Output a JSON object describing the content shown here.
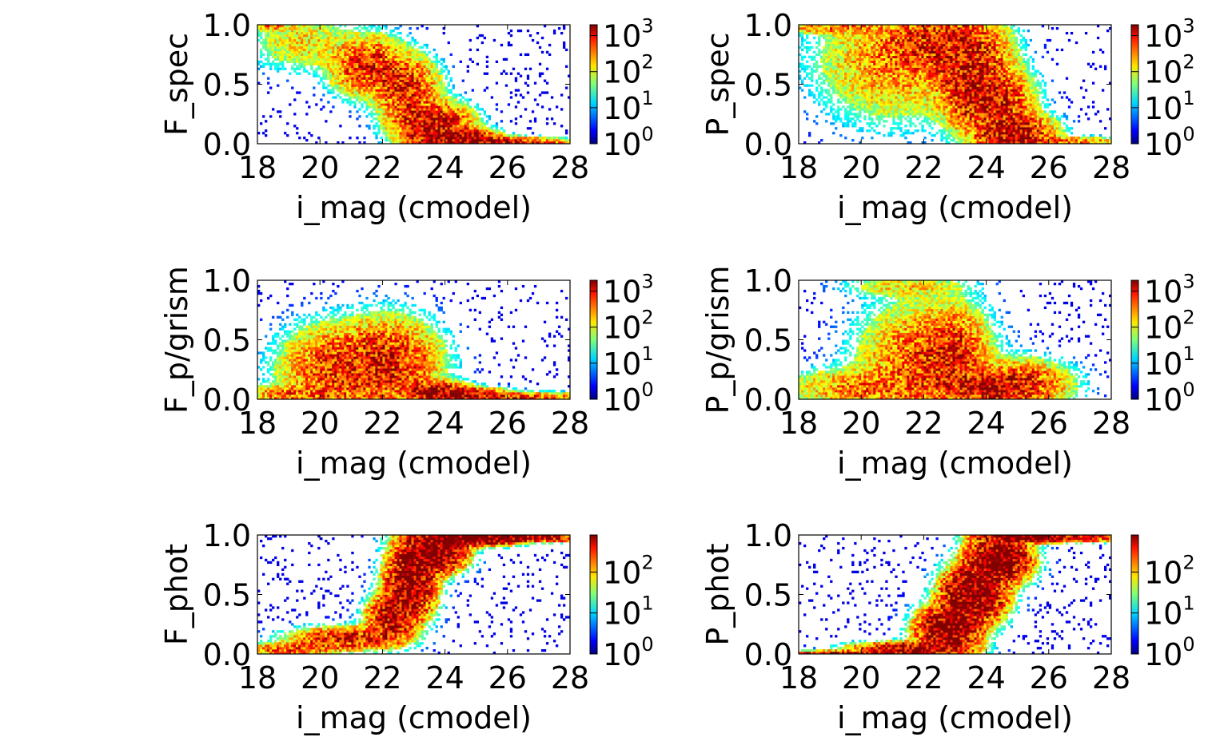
{
  "chart_data": [
    {
      "type": "heatmap",
      "id": "f_spec",
      "xlabel": "i_mag (cmodel)",
      "ylabel": "F_spec",
      "xlim": [
        18,
        28
      ],
      "ylim": [
        0.0,
        1.0
      ],
      "xticks": [
        "18",
        "20",
        "22",
        "24",
        "26",
        "28"
      ],
      "yticks": [
        "0.0",
        "0.5",
        "1.0"
      ],
      "colorbar": {
        "scale": "log",
        "range": [
          1,
          2000
        ],
        "ticks": [
          {
            "base": "10",
            "exp": "0",
            "value": 1
          },
          {
            "base": "10",
            "exp": "1",
            "value": 10
          },
          {
            "base": "10",
            "exp": "2",
            "value": 100
          },
          {
            "base": "10",
            "exp": "3",
            "value": 1000
          }
        ]
      },
      "density_shape": [
        {
          "x": 18.3,
          "y": 0.99,
          "w": 0.4,
          "h": 0.02,
          "weight": 0.35
        },
        {
          "x": 19.5,
          "y": 0.85,
          "w": 0.9,
          "h": 0.12,
          "weight": 0.15
        },
        {
          "x": 21.6,
          "y": 0.65,
          "w": 0.6,
          "h": 0.12,
          "weight": 0.9
        },
        {
          "x": 22.8,
          "y": 0.45,
          "w": 0.5,
          "h": 0.14,
          "weight": 0.8
        },
        {
          "x": 23.6,
          "y": 0.16,
          "w": 0.6,
          "h": 0.09,
          "weight": 1.6
        },
        {
          "x": 24.3,
          "y": 0.05,
          "w": 0.6,
          "h": 0.04,
          "weight": 2.6
        },
        {
          "x": 25.5,
          "y": 0.02,
          "w": 1.0,
          "h": 0.02,
          "weight": 1.4
        },
        {
          "x": 27.2,
          "y": 0.005,
          "w": 0.8,
          "h": 0.01,
          "weight": 0.4
        }
      ]
    },
    {
      "type": "heatmap",
      "id": "p_spec",
      "xlabel": "i_mag (cmodel)",
      "ylabel": "P_spec",
      "xlim": [
        18,
        28
      ],
      "ylim": [
        0.0,
        1.0
      ],
      "xticks": [
        "18",
        "20",
        "22",
        "24",
        "26",
        "28"
      ],
      "yticks": [
        "0.0",
        "0.5",
        "1.0"
      ],
      "colorbar": {
        "scale": "log",
        "range": [
          1,
          2000
        ],
        "ticks": [
          {
            "base": "10",
            "exp": "0",
            "value": 1
          },
          {
            "base": "10",
            "exp": "1",
            "value": 10
          },
          {
            "base": "10",
            "exp": "2",
            "value": 100
          },
          {
            "base": "10",
            "exp": "3",
            "value": 1000
          }
        ]
      },
      "density_shape": [
        {
          "x": 19.0,
          "y": 0.98,
          "w": 0.8,
          "h": 0.03,
          "weight": 0.35
        },
        {
          "x": 21.0,
          "y": 0.7,
          "w": 1.2,
          "h": 0.25,
          "weight": 0.3
        },
        {
          "x": 22.5,
          "y": 0.85,
          "w": 0.9,
          "h": 0.14,
          "weight": 0.9
        },
        {
          "x": 23.5,
          "y": 0.6,
          "w": 0.6,
          "h": 0.2,
          "weight": 1.2
        },
        {
          "x": 24.2,
          "y": 0.35,
          "w": 0.6,
          "h": 0.15,
          "weight": 1.2
        },
        {
          "x": 24.9,
          "y": 0.08,
          "w": 0.6,
          "h": 0.08,
          "weight": 1.8
        },
        {
          "x": 26.5,
          "y": 0.02,
          "w": 0.9,
          "h": 0.02,
          "weight": 0.5
        }
      ]
    },
    {
      "type": "heatmap",
      "id": "f_pgrism",
      "xlabel": "i_mag (cmodel)",
      "ylabel": "F_p/grism",
      "xlim": [
        18,
        28
      ],
      "ylim": [
        0.0,
        1.0
      ],
      "xticks": [
        "18",
        "20",
        "22",
        "24",
        "26",
        "28"
      ],
      "yticks": [
        "0.0",
        "0.5",
        "1.0"
      ],
      "colorbar": {
        "scale": "log",
        "range": [
          1,
          2000
        ],
        "ticks": [
          {
            "base": "10",
            "exp": "0",
            "value": 1
          },
          {
            "base": "10",
            "exp": "1",
            "value": 10
          },
          {
            "base": "10",
            "exp": "2",
            "value": 100
          },
          {
            "base": "10",
            "exp": "3",
            "value": 1000
          }
        ]
      },
      "density_shape": [
        {
          "x": 19.0,
          "y": 0.04,
          "w": 0.8,
          "h": 0.04,
          "weight": 0.4
        },
        {
          "x": 20.6,
          "y": 0.25,
          "w": 0.9,
          "h": 0.18,
          "weight": 0.7
        },
        {
          "x": 22.2,
          "y": 0.3,
          "w": 0.8,
          "h": 0.18,
          "weight": 0.9
        },
        {
          "x": 23.7,
          "y": 0.07,
          "w": 0.5,
          "h": 0.04,
          "weight": 1.8
        },
        {
          "x": 24.4,
          "y": 0.035,
          "w": 0.7,
          "h": 0.03,
          "weight": 2.5
        },
        {
          "x": 26.2,
          "y": 0.02,
          "w": 1.2,
          "h": 0.02,
          "weight": 0.7
        }
      ]
    },
    {
      "type": "heatmap",
      "id": "p_pgrism",
      "xlabel": "i_mag (cmodel)",
      "ylabel": "P_p/grism",
      "xlim": [
        18,
        28
      ],
      "ylim": [
        0.0,
        1.0
      ],
      "xticks": [
        "18",
        "20",
        "22",
        "24",
        "26",
        "28"
      ],
      "yticks": [
        "0.0",
        "0.5",
        "1.0"
      ],
      "colorbar": {
        "scale": "log",
        "range": [
          1,
          2000
        ],
        "ticks": [
          {
            "base": "10",
            "exp": "0",
            "value": 1
          },
          {
            "base": "10",
            "exp": "1",
            "value": 10
          },
          {
            "base": "10",
            "exp": "2",
            "value": 100
          },
          {
            "base": "10",
            "exp": "3",
            "value": 1000
          }
        ]
      },
      "density_shape": [
        {
          "x": 20.0,
          "y": 0.1,
          "w": 1.2,
          "h": 0.08,
          "weight": 0.35
        },
        {
          "x": 22.0,
          "y": 0.3,
          "w": 1.0,
          "h": 0.25,
          "weight": 0.55
        },
        {
          "x": 23.0,
          "y": 0.35,
          "w": 0.5,
          "h": 0.2,
          "weight": 0.7
        },
        {
          "x": 24.1,
          "y": 0.1,
          "w": 0.5,
          "h": 0.06,
          "weight": 1.9
        },
        {
          "x": 25.0,
          "y": 0.12,
          "w": 0.8,
          "h": 0.1,
          "weight": 0.9
        },
        {
          "x": 21.5,
          "y": 0.95,
          "w": 1.0,
          "h": 0.05,
          "weight": 0.15
        }
      ]
    },
    {
      "type": "heatmap",
      "id": "f_phot",
      "xlabel": "i_mag (cmodel)",
      "ylabel": "F_phot",
      "xlim": [
        18,
        28
      ],
      "ylim": [
        0.0,
        1.0
      ],
      "xticks": [
        "18",
        "20",
        "22",
        "24",
        "26",
        "28"
      ],
      "yticks": [
        "0.0",
        "0.5",
        "1.0"
      ],
      "colorbar": {
        "scale": "log",
        "range": [
          1,
          800
        ],
        "ticks": [
          {
            "base": "10",
            "exp": "0",
            "value": 1
          },
          {
            "base": "10",
            "exp": "1",
            "value": 10
          },
          {
            "base": "10",
            "exp": "2",
            "value": 100
          }
        ]
      },
      "density_shape": [
        {
          "x": 19.0,
          "y": 0.04,
          "w": 0.8,
          "h": 0.03,
          "weight": 0.3
        },
        {
          "x": 20.8,
          "y": 0.13,
          "w": 0.9,
          "h": 0.05,
          "weight": 0.5
        },
        {
          "x": 22.3,
          "y": 0.3,
          "w": 0.4,
          "h": 0.1,
          "weight": 0.8
        },
        {
          "x": 22.9,
          "y": 0.6,
          "w": 0.4,
          "h": 0.15,
          "weight": 1.3
        },
        {
          "x": 23.6,
          "y": 0.85,
          "w": 0.5,
          "h": 0.08,
          "weight": 1.9
        },
        {
          "x": 24.6,
          "y": 0.97,
          "w": 0.8,
          "h": 0.03,
          "weight": 2.3
        },
        {
          "x": 26.5,
          "y": 0.98,
          "w": 1.2,
          "h": 0.02,
          "weight": 0.9
        }
      ]
    },
    {
      "type": "heatmap",
      "id": "p_phot",
      "xlabel": "i_mag (cmodel)",
      "ylabel": "P_phot",
      "xlim": [
        18,
        28
      ],
      "ylim": [
        0.0,
        1.0
      ],
      "xticks": [
        "18",
        "20",
        "22",
        "24",
        "26",
        "28"
      ],
      "yticks": [
        "0.0",
        "0.5",
        "1.0"
      ],
      "colorbar": {
        "scale": "log",
        "range": [
          1,
          800
        ],
        "ticks": [
          {
            "base": "10",
            "exp": "0",
            "value": 1
          },
          {
            "base": "10",
            "exp": "1",
            "value": 10
          },
          {
            "base": "10",
            "exp": "2",
            "value": 100
          }
        ]
      },
      "density_shape": [
        {
          "x": 19.5,
          "y": 0.01,
          "w": 1.2,
          "h": 0.01,
          "weight": 0.5
        },
        {
          "x": 21.5,
          "y": 0.04,
          "w": 0.9,
          "h": 0.03,
          "weight": 1.0
        },
        {
          "x": 22.8,
          "y": 0.2,
          "w": 0.5,
          "h": 0.1,
          "weight": 1.5
        },
        {
          "x": 23.6,
          "y": 0.5,
          "w": 0.5,
          "h": 0.12,
          "weight": 1.7
        },
        {
          "x": 24.4,
          "y": 0.8,
          "w": 0.5,
          "h": 0.1,
          "weight": 1.7
        },
        {
          "x": 25.3,
          "y": 0.98,
          "w": 0.7,
          "h": 0.02,
          "weight": 2.2
        },
        {
          "x": 26.8,
          "y": 0.98,
          "w": 0.8,
          "h": 0.02,
          "weight": 0.6
        }
      ]
    }
  ]
}
